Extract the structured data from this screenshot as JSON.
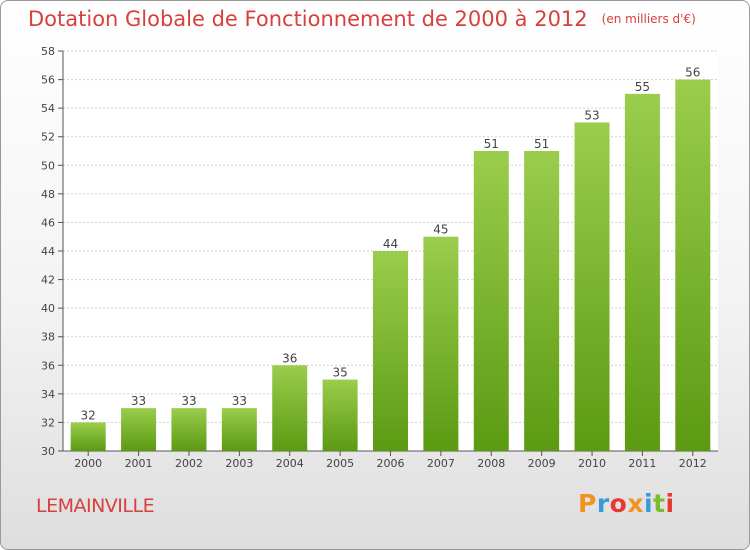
{
  "chart_data": {
    "type": "bar",
    "title": "Dotation Globale de Fonctionnement de 2000 à 2012",
    "unit_label": "(en milliers d'€)",
    "categories": [
      "2000",
      "2001",
      "2002",
      "2003",
      "2004",
      "2005",
      "2006",
      "2007",
      "2008",
      "2009",
      "2010",
      "2011",
      "2012"
    ],
    "values": [
      32,
      33,
      33,
      33,
      36,
      35,
      44,
      45,
      51,
      51,
      53,
      55,
      56
    ],
    "ylim": [
      30,
      58
    ],
    "yticks": [
      30,
      32,
      34,
      36,
      38,
      40,
      42,
      44,
      46,
      48,
      50,
      52,
      54,
      56,
      58
    ],
    "grid": true,
    "bar_color_top": "#9acd4c",
    "bar_color_bottom": "#5c9a12"
  },
  "commune": "LEMAINVILLE",
  "logo": {
    "text": "Proxiti",
    "letters": [
      {
        "ch": "P",
        "color": "#f0941f"
      },
      {
        "ch": "r",
        "color": "#3a9ad9"
      },
      {
        "ch": "o",
        "color": "#e63a2e"
      },
      {
        "ch": "x",
        "color": "#f0941f"
      },
      {
        "ch": "i",
        "color": "#3a9ad9"
      },
      {
        "ch": "t",
        "color": "#7cbb2c"
      },
      {
        "ch": "i",
        "color": "#e63a2e"
      }
    ]
  }
}
